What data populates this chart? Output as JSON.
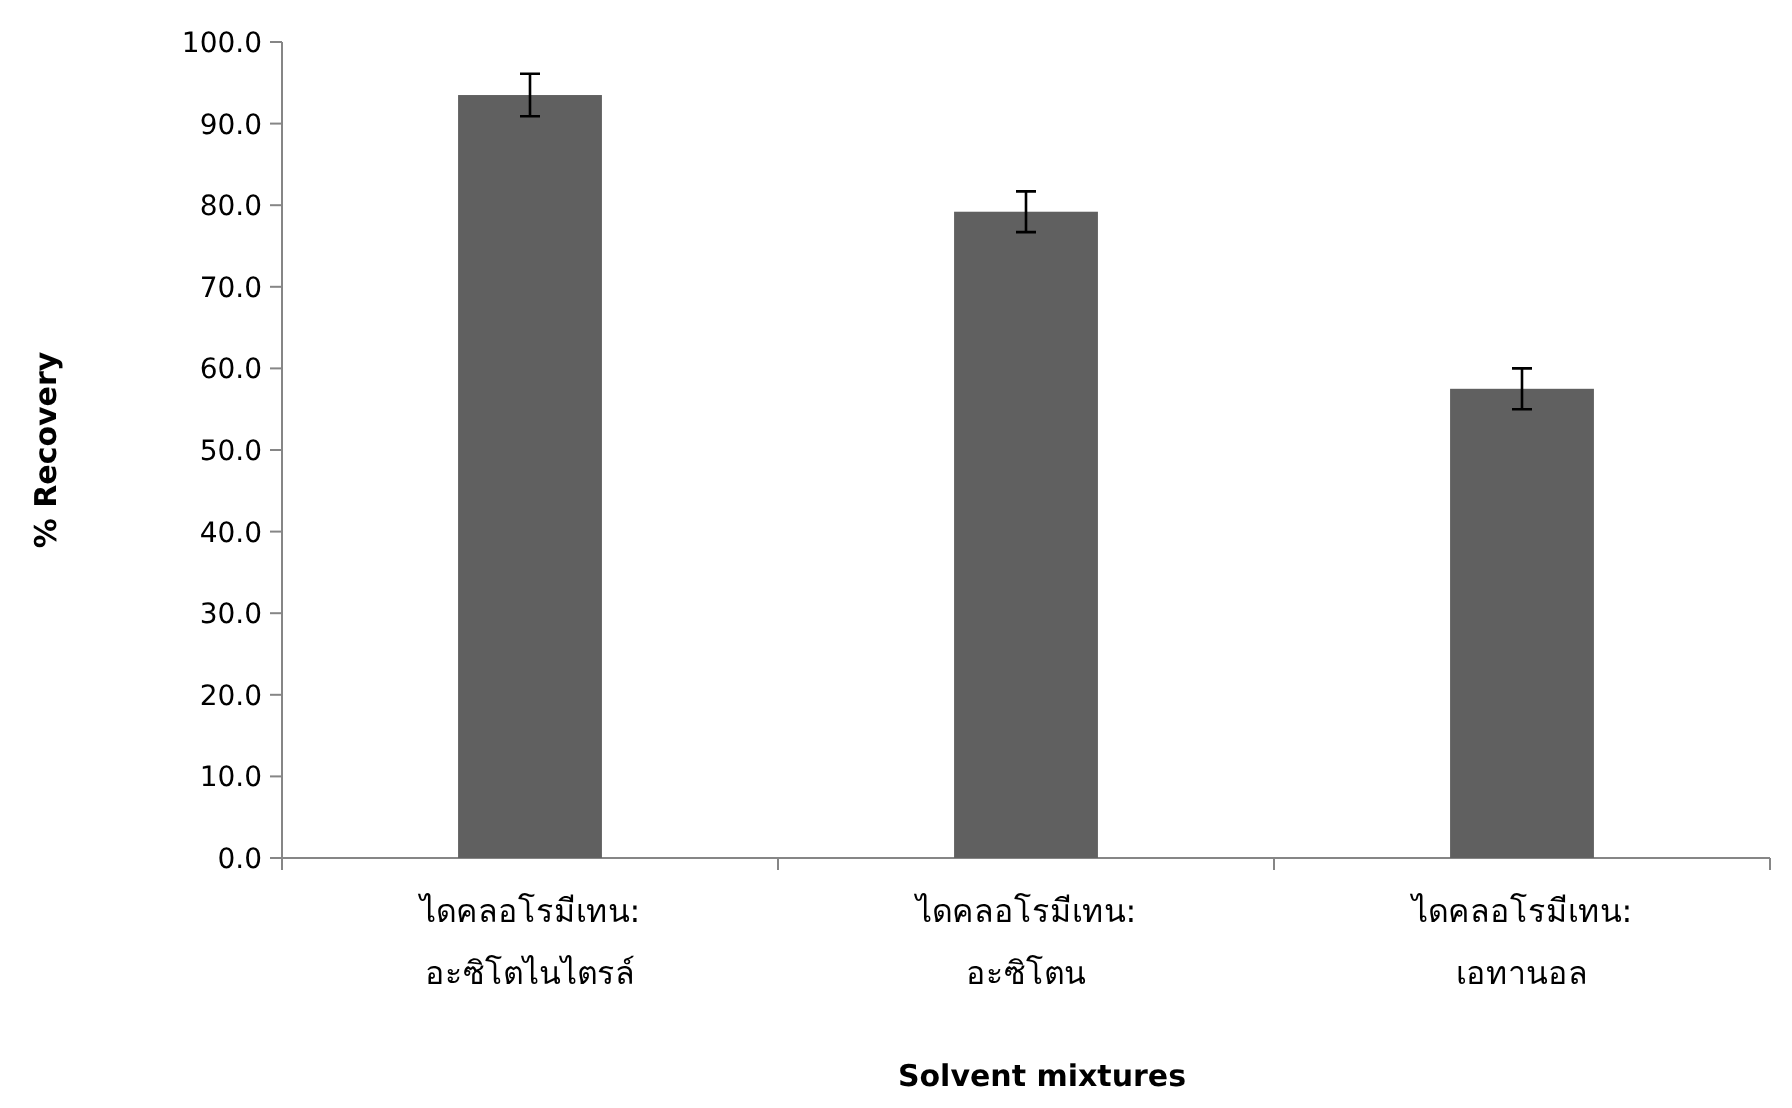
{
  "chart_data": {
    "type": "bar",
    "xlabel": "Solvent mixtures",
    "ylabel": "% Recovery",
    "categories": [
      "ไดคลอโรมีเทน: อะซิโตไนไตรล์",
      "ไดคลอโรมีเทน: อะซิโตน",
      "ไดคลอโรมีเทน: เอทานอล"
    ],
    "values": [
      93.5,
      79.2,
      57.5
    ],
    "errors": [
      2.6,
      2.5,
      2.5
    ],
    "color": "#606060",
    "ylim": [
      0,
      100
    ],
    "yticks": [
      {
        "value": 0,
        "label": "0.0"
      },
      {
        "value": 10,
        "label": "10.0"
      },
      {
        "value": 20,
        "label": "20.0"
      },
      {
        "value": 30,
        "label": "30.0"
      },
      {
        "value": 40,
        "label": "40.0"
      },
      {
        "value": 50,
        "label": "50.0"
      },
      {
        "value": 60,
        "label": "60.0"
      },
      {
        "value": 70,
        "label": "70.0"
      },
      {
        "value": 80,
        "label": "80.0"
      },
      {
        "value": 90,
        "label": "90.0"
      },
      {
        "value": 100,
        "label": "100.0"
      }
    ],
    "grid": false
  }
}
